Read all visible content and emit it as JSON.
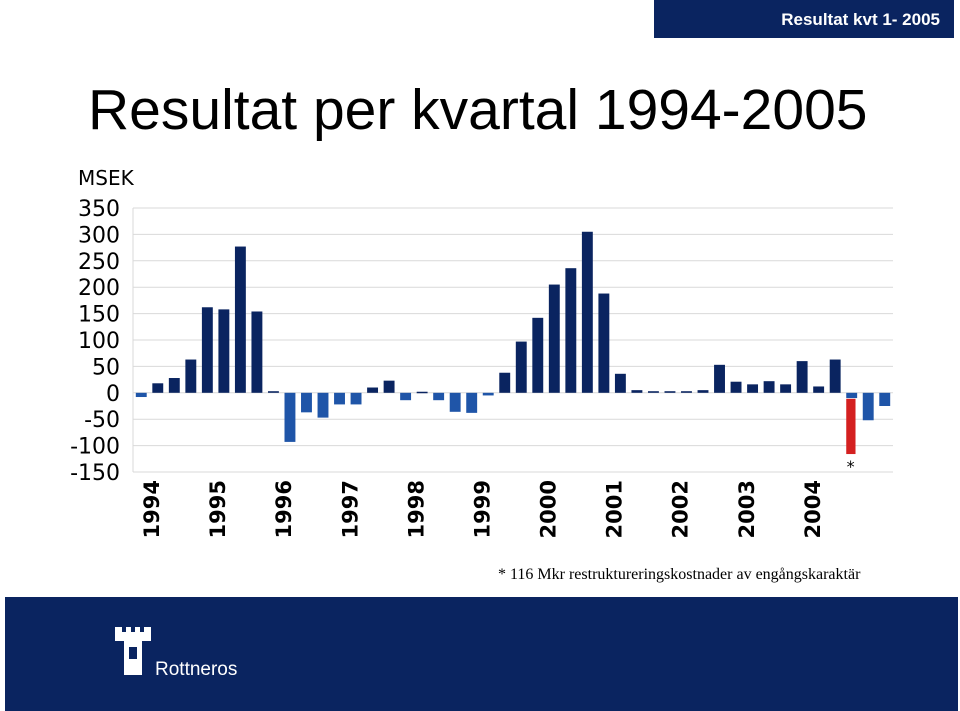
{
  "header": {
    "badge": "Resultat kvt 1- 2005"
  },
  "page_title": "Resultat per kvartal 1994-2005",
  "footnote": "* 116 Mkr restruktureringskostnader av engångskaraktär",
  "brand": {
    "name": "Rottneros",
    "logo_icon": "castle-tower-icon",
    "color": "#0a2460"
  },
  "colors": {
    "dark_bar": "#0a2460",
    "light_bar": "#1f55a8",
    "special_bar": "#d42020"
  },
  "chart_data": {
    "type": "bar",
    "ylabel": "MSEK",
    "ylim": [
      -150,
      350
    ],
    "yticks": [
      350,
      300,
      250,
      200,
      150,
      100,
      50,
      0,
      -50,
      -100,
      -150
    ],
    "grid": true,
    "year_labels": [
      "1994",
      "1995",
      "1996",
      "1997",
      "1998",
      "1999",
      "2000",
      "2001",
      "2002",
      "2003",
      "2004"
    ],
    "values": [
      -8,
      18,
      28,
      63,
      162,
      158,
      277,
      154,
      3,
      -93,
      -37,
      -47,
      -22,
      -22,
      10,
      23,
      -14,
      2,
      -14,
      -36,
      -38,
      -5,
      38,
      97,
      142,
      205,
      236,
      305,
      188,
      36,
      5,
      3,
      3,
      3,
      5,
      53,
      21,
      16,
      22,
      16,
      60,
      12,
      63,
      -10,
      -52,
      -25
    ],
    "special": {
      "index": 43,
      "value": -116,
      "marker": "*"
    }
  }
}
